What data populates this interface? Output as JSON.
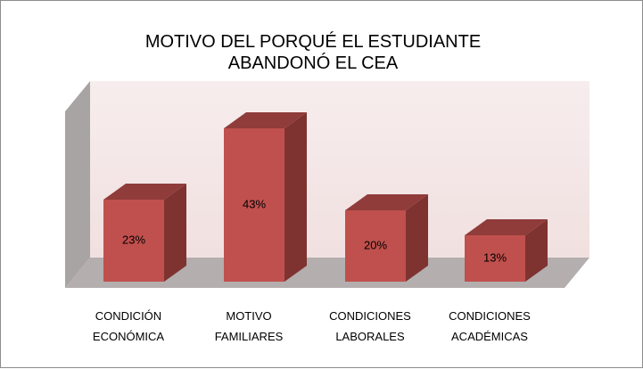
{
  "chart_data": {
    "type": "bar3d",
    "title": "MOTIVO DEL PORQUÉ EL ESTUDIANTE ABANDONÓ EL CEA",
    "categories": [
      "CONDICIÓN\nECONÓMICA",
      "MOTIVO\nFAMILIARES",
      "CONDICIONES\nLABORALES",
      "CONDICIONES\nACADÉMICAS"
    ],
    "values": [
      23,
      43,
      20,
      13
    ],
    "value_labels": [
      "23%",
      "43%",
      "20%",
      "13%"
    ],
    "color": "#c0504d",
    "ylim": [
      0,
      50
    ]
  }
}
